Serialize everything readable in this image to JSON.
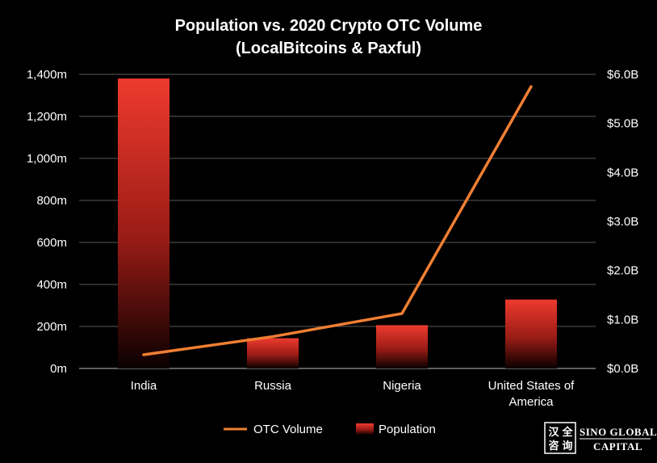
{
  "chart_data": {
    "type": "bar",
    "title": [
      "Population vs. 2020 Crypto OTC Volume",
      "(LocalBitcoins & Paxful)"
    ],
    "categories": [
      [
        "India"
      ],
      [
        "Russia"
      ],
      [
        "Nigeria"
      ],
      [
        "United States of",
        "America"
      ]
    ],
    "series": [
      {
        "name": "Population",
        "type": "bar",
        "axis": "left",
        "values": [
          1380,
          144,
          206,
          328
        ],
        "color": "#e8322a"
      },
      {
        "name": "OTC Volume",
        "type": "line",
        "axis": "right",
        "values": [
          0.28,
          0.65,
          1.12,
          5.75
        ],
        "color": "#f07f33"
      }
    ],
    "left_axis": {
      "min": 0,
      "max": 1400,
      "step": 200,
      "tick_labels": [
        "0m",
        "200m",
        "400m",
        "600m",
        "800m",
        "1,000m",
        "1,200m",
        "1,400m"
      ]
    },
    "right_axis": {
      "min": 0,
      "max": 6,
      "step": 1,
      "tick_labels": [
        "$0.0B",
        "$1.0B",
        "$2.0B",
        "$3.0B",
        "$4.0B",
        "$5.0B",
        "$6.0B"
      ]
    },
    "grid": true,
    "legend_position": "bottom",
    "legend": [
      "OTC Volume",
      "Population"
    ]
  },
  "branding": {
    "chinese": [
      "汉",
      "全",
      "咨",
      "询"
    ],
    "line1": "SINO GLOBAL",
    "line2": "CAPITAL"
  }
}
